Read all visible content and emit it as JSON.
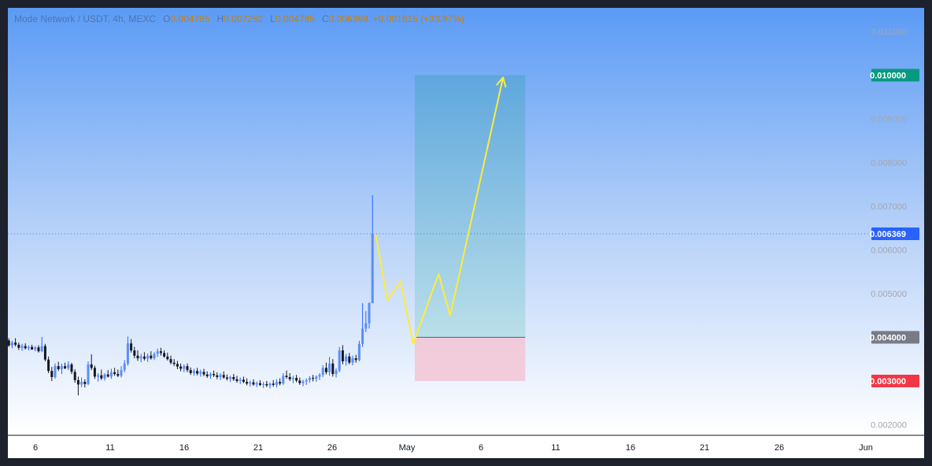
{
  "chart_data": {
    "type": "candlestick",
    "title": "Mode Network / USDT, 4h, MEXC",
    "ohlc": {
      "open_label": "O",
      "open": "0.004785",
      "high_label": "H",
      "high": "0.007252",
      "low_label": "L",
      "low": "0.004785",
      "close_label": "C",
      "close": "0.006369",
      "change": "+0.001615 (+33.97%)"
    },
    "x_ticks": [
      "6",
      "11",
      "16",
      "21",
      "26",
      "May",
      "6",
      "11",
      "16",
      "21",
      "26",
      "Jun"
    ],
    "y_ticks": [
      "0.011000",
      "0.009000",
      "0.008000",
      "0.007000",
      "0.006000",
      "0.005000",
      "0.002000"
    ],
    "ylim": [
      0.0019,
      0.0111
    ],
    "price_labels": {
      "target": {
        "value": 0.01,
        "label": "0.010000",
        "color": "#089981"
      },
      "last": {
        "value": 0.006369,
        "label": "0.006369",
        "color": "#2962ff"
      },
      "entry": {
        "value": 0.004,
        "label": "0.004000",
        "color": "#787b86"
      },
      "stop": {
        "value": 0.003,
        "label": "0.003000",
        "color": "#f23645"
      }
    },
    "candles": [
      [
        1,
        0.00393,
        0.00398,
        0.00378,
        0.00381
      ],
      [
        2,
        0.00381,
        0.00392,
        0.00375,
        0.00388
      ],
      [
        3,
        0.00388,
        0.00398,
        0.00379,
        0.00383
      ],
      [
        4,
        0.00383,
        0.00388,
        0.00371,
        0.00376
      ],
      [
        5,
        0.00376,
        0.00385,
        0.00369,
        0.0038
      ],
      [
        6,
        0.0038,
        0.00386,
        0.00372,
        0.00375
      ],
      [
        7,
        0.00375,
        0.00381,
        0.0037,
        0.00378
      ],
      [
        8,
        0.00378,
        0.00383,
        0.00371,
        0.00372
      ],
      [
        9,
        0.00372,
        0.0038,
        0.00368,
        0.00377
      ],
      [
        10,
        0.00377,
        0.00382,
        0.00365,
        0.00368
      ],
      [
        11,
        0.00368,
        0.00401,
        0.00366,
        0.0038
      ],
      [
        12,
        0.0038,
        0.00385,
        0.00345,
        0.00349
      ],
      [
        13,
        0.00349,
        0.00356,
        0.00318,
        0.00323
      ],
      [
        14,
        0.00323,
        0.00332,
        0.003,
        0.00309
      ],
      [
        15,
        0.00309,
        0.0034,
        0.00305,
        0.00334
      ],
      [
        16,
        0.00334,
        0.00344,
        0.00323,
        0.00327
      ],
      [
        17,
        0.00327,
        0.0034,
        0.00316,
        0.00334
      ],
      [
        18,
        0.00334,
        0.00342,
        0.00327,
        0.00329
      ],
      [
        19,
        0.00329,
        0.00345,
        0.00325,
        0.00338
      ],
      [
        20,
        0.00338,
        0.00342,
        0.00316,
        0.00321
      ],
      [
        21,
        0.00321,
        0.00327,
        0.00296,
        0.00302
      ],
      [
        22,
        0.00302,
        0.0031,
        0.00267,
        0.00292
      ],
      [
        23,
        0.00292,
        0.00308,
        0.00286,
        0.00298
      ],
      [
        24,
        0.00298,
        0.00304,
        0.00285,
        0.00293
      ],
      [
        25,
        0.00293,
        0.00345,
        0.0029,
        0.00338
      ],
      [
        26,
        0.00338,
        0.00361,
        0.00325,
        0.0033
      ],
      [
        27,
        0.0033,
        0.00335,
        0.00305,
        0.0031
      ],
      [
        28,
        0.0031,
        0.00318,
        0.00299,
        0.00313
      ],
      [
        29,
        0.00313,
        0.00326,
        0.00302,
        0.00306
      ],
      [
        30,
        0.00306,
        0.00318,
        0.00301,
        0.00315
      ],
      [
        31,
        0.00315,
        0.00325,
        0.00308,
        0.0031
      ],
      [
        32,
        0.0031,
        0.00328,
        0.00305,
        0.0032
      ],
      [
        33,
        0.0032,
        0.0033,
        0.00312,
        0.00316
      ],
      [
        34,
        0.00316,
        0.00326,
        0.00309,
        0.00312
      ],
      [
        35,
        0.00312,
        0.00334,
        0.00308,
        0.00325
      ],
      [
        36,
        0.00325,
        0.00348,
        0.0032,
        0.0034
      ],
      [
        37,
        0.0034,
        0.00402,
        0.00335,
        0.00386
      ],
      [
        38,
        0.00386,
        0.00396,
        0.00365,
        0.0037
      ],
      [
        39,
        0.0037,
        0.00378,
        0.00352,
        0.00358
      ],
      [
        40,
        0.00358,
        0.0037,
        0.00346,
        0.00352
      ],
      [
        41,
        0.00352,
        0.00362,
        0.00343,
        0.00356
      ],
      [
        42,
        0.00356,
        0.00366,
        0.00347,
        0.00351
      ],
      [
        43,
        0.00351,
        0.00363,
        0.00344,
        0.00358
      ],
      [
        44,
        0.00358,
        0.00368,
        0.00349,
        0.00352
      ],
      [
        45,
        0.00352,
        0.00366,
        0.00348,
        0.00362
      ],
      [
        46,
        0.00362,
        0.00374,
        0.00355,
        0.00368
      ],
      [
        47,
        0.00368,
        0.00376,
        0.00358,
        0.00364
      ],
      [
        48,
        0.00364,
        0.0037,
        0.00353,
        0.00356
      ],
      [
        49,
        0.00356,
        0.00365,
        0.00347,
        0.0035
      ],
      [
        50,
        0.0035,
        0.00358,
        0.00338,
        0.00342
      ],
      [
        51,
        0.00342,
        0.0035,
        0.00334,
        0.00339
      ],
      [
        52,
        0.00339,
        0.00346,
        0.00327,
        0.00333
      ],
      [
        53,
        0.00333,
        0.0034,
        0.00322,
        0.00328
      ],
      [
        54,
        0.00328,
        0.00338,
        0.0032,
        0.00334
      ],
      [
        55,
        0.00334,
        0.0034,
        0.0032,
        0.00325
      ],
      [
        56,
        0.00325,
        0.00331,
        0.00314,
        0.00318
      ],
      [
        57,
        0.00318,
        0.00328,
        0.00312,
        0.00323
      ],
      [
        58,
        0.00323,
        0.0033,
        0.00313,
        0.00317
      ],
      [
        59,
        0.00317,
        0.00326,
        0.0031,
        0.00321
      ],
      [
        60,
        0.00321,
        0.00328,
        0.00311,
        0.00315
      ],
      [
        61,
        0.00315,
        0.00322,
        0.00307,
        0.00311
      ],
      [
        62,
        0.00311,
        0.0032,
        0.00305,
        0.00316
      ],
      [
        63,
        0.00316,
        0.00324,
        0.00309,
        0.00313
      ],
      [
        64,
        0.00313,
        0.0032,
        0.00304,
        0.00309
      ],
      [
        65,
        0.00309,
        0.00318,
        0.00302,
        0.00314
      ],
      [
        66,
        0.00314,
        0.00322,
        0.00305,
        0.00308
      ],
      [
        67,
        0.00308,
        0.00315,
        0.00301,
        0.00305
      ],
      [
        68,
        0.00305,
        0.00312,
        0.00298,
        0.00309
      ],
      [
        69,
        0.00309,
        0.00316,
        0.003,
        0.00304
      ],
      [
        70,
        0.00304,
        0.00312,
        0.00296,
        0.003
      ],
      [
        71,
        0.003,
        0.00308,
        0.00293,
        0.00303
      ],
      [
        72,
        0.00303,
        0.0031,
        0.00295,
        0.00298
      ],
      [
        73,
        0.00298,
        0.00306,
        0.0029,
        0.00294
      ],
      [
        74,
        0.00294,
        0.00301,
        0.00287,
        0.00297
      ],
      [
        75,
        0.00297,
        0.00304,
        0.00289,
        0.00292
      ],
      [
        76,
        0.00292,
        0.00299,
        0.00286,
        0.00295
      ],
      [
        77,
        0.00295,
        0.00302,
        0.00288,
        0.00291
      ],
      [
        78,
        0.00291,
        0.00298,
        0.00284,
        0.00293
      ],
      [
        79,
        0.00293,
        0.003,
        0.00286,
        0.0029
      ],
      [
        80,
        0.0029,
        0.00297,
        0.00283,
        0.00294
      ],
      [
        81,
        0.00294,
        0.00302,
        0.00287,
        0.00291
      ],
      [
        82,
        0.00291,
        0.00304,
        0.00285,
        0.00298
      ],
      [
        83,
        0.00298,
        0.00306,
        0.0029,
        0.00294
      ],
      [
        84,
        0.00294,
        0.00318,
        0.00291,
        0.00312
      ],
      [
        85,
        0.00312,
        0.00324,
        0.00305,
        0.00309
      ],
      [
        86,
        0.00309,
        0.00318,
        0.003,
        0.00304
      ],
      [
        87,
        0.00304,
        0.00312,
        0.00295,
        0.00307
      ],
      [
        88,
        0.00307,
        0.00314,
        0.00297,
        0.00301
      ],
      [
        89,
        0.00301,
        0.00308,
        0.00291,
        0.00295
      ],
      [
        90,
        0.00295,
        0.00303,
        0.00288,
        0.00299
      ],
      [
        91,
        0.00299,
        0.00306,
        0.00291,
        0.00302
      ],
      [
        92,
        0.00302,
        0.00311,
        0.00296,
        0.00307
      ],
      [
        93,
        0.00307,
        0.00314,
        0.00299,
        0.00305
      ],
      [
        94,
        0.00305,
        0.00313,
        0.00298,
        0.0031
      ],
      [
        95,
        0.0031,
        0.00318,
        0.00302,
        0.00314
      ],
      [
        96,
        0.00314,
        0.00336,
        0.00309,
        0.0033
      ],
      [
        97,
        0.0033,
        0.00342,
        0.00315,
        0.0032
      ],
      [
        98,
        0.0032,
        0.00355,
        0.00312,
        0.0034
      ],
      [
        99,
        0.0034,
        0.0035,
        0.0031,
        0.00316
      ],
      [
        100,
        0.00316,
        0.00329,
        0.00308,
        0.00324
      ],
      [
        101,
        0.00324,
        0.00378,
        0.0032,
        0.0037
      ],
      [
        102,
        0.0037,
        0.00382,
        0.00338,
        0.00345
      ],
      [
        103,
        0.00345,
        0.00362,
        0.00335,
        0.00356
      ],
      [
        104,
        0.00356,
        0.00364,
        0.00338,
        0.00342
      ],
      [
        105,
        0.00342,
        0.00358,
        0.00336,
        0.00352
      ],
      [
        106,
        0.00352,
        0.0036,
        0.00342,
        0.00348
      ],
      [
        107,
        0.00348,
        0.00392,
        0.00345,
        0.00385
      ],
      [
        108,
        0.00385,
        0.00478,
        0.00378,
        0.0042
      ],
      [
        109,
        0.0042,
        0.0046,
        0.00412,
        0.00432
      ],
      [
        110,
        0.00432,
        0.0048,
        0.0042,
        0.00478
      ],
      [
        111,
        0.00478,
        0.00725,
        0.00478,
        0.00637
      ]
    ],
    "forecast_path": [
      [
        112,
        0.00635
      ],
      [
        115.5,
        0.00485
      ],
      [
        119.5,
        0.00528
      ],
      [
        123.3,
        0.00385
      ],
      [
        131,
        0.00545
      ],
      [
        134.5,
        0.0045
      ],
      [
        150.5,
        0.00995
      ]
    ],
    "forecast_arrowhead": [
      [
        148.5,
        0.00977
      ],
      [
        150.5,
        0.00995
      ],
      [
        151.3,
        0.00972
      ]
    ],
    "position": {
      "x_start": 123.8,
      "x_end": 157.2,
      "target": 0.01,
      "entry": 0.004,
      "stop": 0.003
    }
  }
}
